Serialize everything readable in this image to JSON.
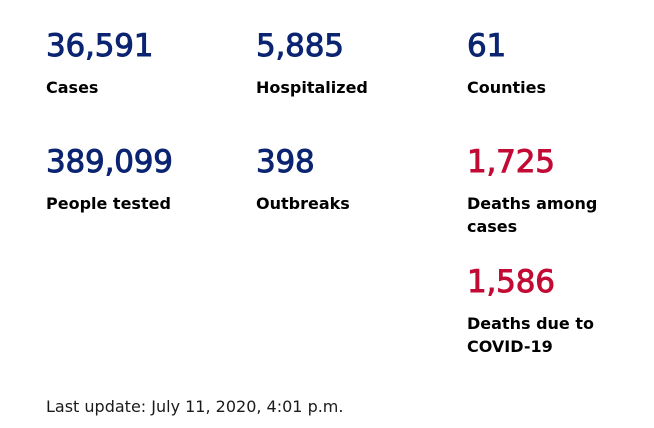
{
  "stats": {
    "cases": {
      "value": "36,591",
      "label": "Cases"
    },
    "hospitalized": {
      "value": "5,885",
      "label": "Hospitalized"
    },
    "counties": {
      "value": "61",
      "label": "Counties"
    },
    "people_tested": {
      "value": "389,099",
      "label": "People tested"
    },
    "outbreaks": {
      "value": "398",
      "label": "Outbreaks"
    },
    "deaths_among_cases": {
      "value": "1,725",
      "label": "Deaths among cases"
    },
    "deaths_due_to_covid": {
      "value": "1,586",
      "label": "Deaths due to COVID-19"
    }
  },
  "last_update": "Last update: July 11, 2020, 4:01 p.m.",
  "colors": {
    "primary_blue": "#0b2471",
    "alert_red": "#c20a35",
    "label_text": "#000000"
  }
}
